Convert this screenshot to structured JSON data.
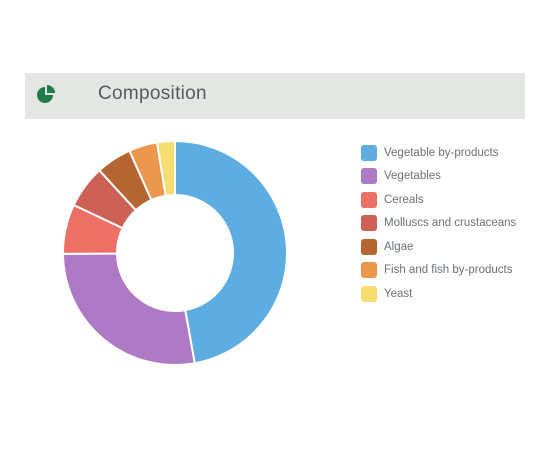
{
  "header": {
    "title": "Composition",
    "icon": "pie-chart-icon",
    "icon_color": "#1f7a4a"
  },
  "chart_data": {
    "type": "pie",
    "donut": true,
    "title": "Composition",
    "legend_position": "right",
    "categories": [
      "Vegetable by-products",
      "Vegetables",
      "Cereals",
      "Molluscs and crustaceans",
      "Algae",
      "Fish and fish by-products",
      "Yeast"
    ],
    "values": [
      46,
      27,
      7,
      6,
      5,
      4,
      2.5
    ],
    "colors": [
      "#5dade2",
      "#af7ac5",
      "#ec7063",
      "#cd6155",
      "#b5652f",
      "#eb984e",
      "#f7dc6f"
    ]
  }
}
